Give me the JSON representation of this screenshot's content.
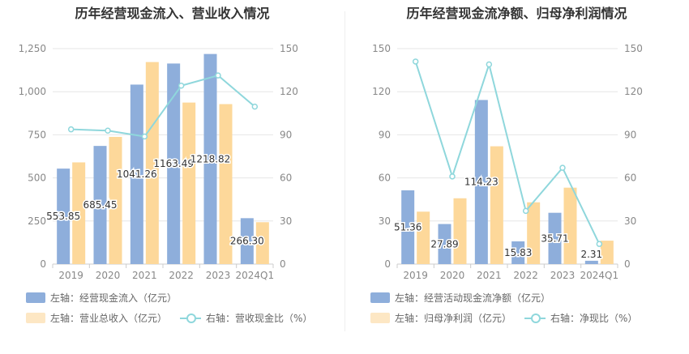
{
  "charts": [
    {
      "title": "历年经营现金流入、营业收入情况",
      "legend": {
        "bar1": "左轴：经营现金流入（亿元）",
        "bar2": "左轴：营业总收入（亿元）",
        "line": "右轴：营收现金比（%）"
      }
    },
    {
      "title": "历年经营现金流净额、归母净利润情况",
      "legend": {
        "bar1": "左轴：经营活动现金流净额（亿元）",
        "bar2": "左轴：归母净利润（亿元）",
        "line": "右轴：净现比（%）"
      }
    }
  ],
  "chart_data": [
    {
      "type": "bar",
      "title": "历年经营现金流入、营业收入情况",
      "categories": [
        "2019",
        "2020",
        "2021",
        "2022",
        "2023",
        "2024Q1"
      ],
      "ylim": [
        0,
        1250
      ],
      "yticks": [
        "0",
        "250",
        "500",
        "750",
        "1,000",
        "1,250"
      ],
      "y2lim": [
        0,
        150
      ],
      "y2ticks": [
        "0",
        "30",
        "60",
        "90",
        "120",
        "150"
      ],
      "series": [
        {
          "name": "左轴：经营现金流入（亿元）",
          "axis": "left",
          "type": "bar",
          "color": "#8eaedb",
          "values": [
            553.85,
            685.45,
            1041.26,
            1163.49,
            1218.82,
            266.3
          ],
          "labels": [
            "553.85",
            "685.45",
            "1041.26",
            "1163.49",
            "1218.82",
            "266.30"
          ]
        },
        {
          "name": "左轴：营业总收入（亿元）",
          "axis": "left",
          "type": "bar",
          "color": "#fdd89a",
          "values": [
            590,
            738,
            1172,
            937,
            928,
            243
          ]
        },
        {
          "name": "右轴：营收现金比（%）",
          "axis": "right",
          "type": "line",
          "color": "#8fd7dc",
          "values": [
            93.8,
            92.9,
            88.8,
            124.2,
            131.3,
            109.6
          ]
        }
      ]
    },
    {
      "type": "bar",
      "title": "历年经营现金流净额、归母净利润情况",
      "categories": [
        "2019",
        "2020",
        "2021",
        "2022",
        "2023",
        "2024Q1"
      ],
      "ylim": [
        0,
        150
      ],
      "yticks": [
        "0",
        "30",
        "60",
        "90",
        "120",
        "150"
      ],
      "y2lim": [
        0,
        150
      ],
      "y2ticks": [
        "0",
        "30",
        "60",
        "90",
        "120",
        "150"
      ],
      "series": [
        {
          "name": "左轴：经营活动现金流净额（亿元）",
          "axis": "left",
          "type": "bar",
          "color": "#8eaedb",
          "values": [
            51.36,
            27.89,
            114.23,
            15.83,
            35.71,
            2.31
          ],
          "labels": [
            "51.36",
            "27.89",
            "114.23",
            "15.83",
            "35.71",
            "2.31"
          ]
        },
        {
          "name": "左轴：归母净利润（亿元）",
          "axis": "left",
          "type": "bar",
          "color": "#fdd89a",
          "values": [
            36.5,
            45.8,
            82.0,
            43.0,
            53.2,
            16.3
          ]
        },
        {
          "name": "右轴：净现比（%）",
          "axis": "right",
          "type": "line",
          "color": "#8fd7dc",
          "values": [
            141,
            61,
            139,
            37,
            67,
            14
          ]
        }
      ]
    }
  ]
}
